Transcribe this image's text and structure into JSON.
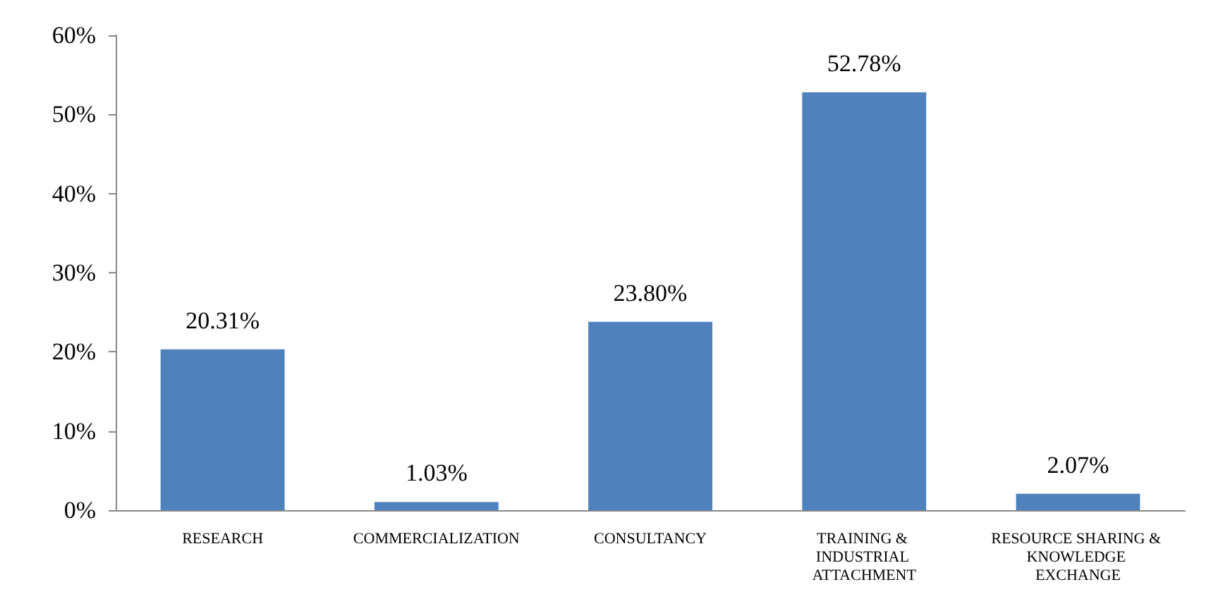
{
  "chart_data": {
    "type": "bar",
    "categories": [
      "RESEARCH",
      "COMMERCIALIZATION",
      "CONSULTANCY",
      "TRAINING & INDUSTRIAL ATTACHMENT",
      "RESOURCE SHARING & KNOWLEDGE EXCHANGE"
    ],
    "values": [
      20.31,
      1.03,
      23.8,
      52.78,
      2.07
    ],
    "value_labels": [
      "20.31%",
      "1.03%",
      "23.80%",
      "52.78%",
      "2.07%"
    ],
    "color": "#4f81bd",
    "ylim": [
      0,
      60
    ],
    "yticks": [
      {
        "value": 0,
        "label": "0%"
      },
      {
        "value": 10,
        "label": "10%"
      },
      {
        "value": 20,
        "label": "20%"
      },
      {
        "value": 30,
        "label": "30%"
      },
      {
        "value": 40,
        "label": "40%"
      },
      {
        "value": 50,
        "label": "50%"
      },
      {
        "value": 60,
        "label": "60%"
      }
    ],
    "grid": false
  }
}
